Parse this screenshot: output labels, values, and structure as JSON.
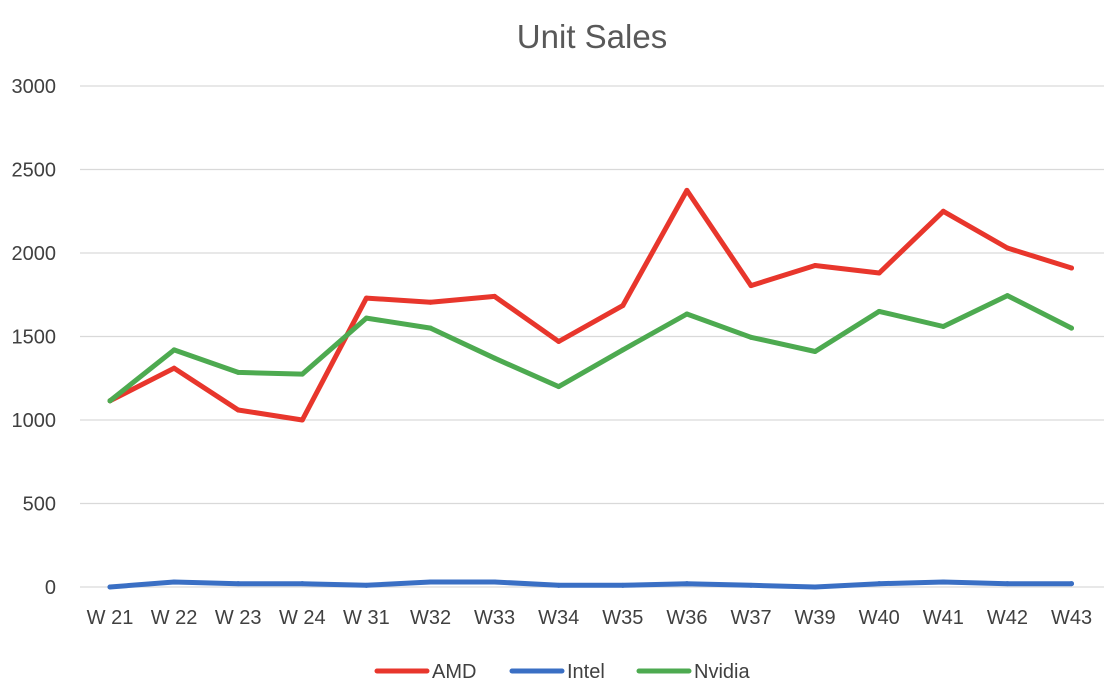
{
  "chart_data": {
    "type": "line",
    "title": "Unit Sales",
    "xlabel": "",
    "ylabel": "",
    "categories": [
      "W 21",
      "W 22",
      "W 23",
      "W 24",
      "W 31",
      "W32",
      "W33",
      "W34",
      "W35",
      "W36",
      "W37",
      "W39",
      "W40",
      "W41",
      "W42",
      "W43"
    ],
    "ylim": [
      0,
      3000
    ],
    "yticks": [
      0,
      500,
      1000,
      1500,
      2000,
      2500,
      3000
    ],
    "grid": true,
    "legend_position": "bottom",
    "series": [
      {
        "name": "AMD",
        "color": "#e8362c",
        "values": [
          1115,
          1310,
          1060,
          1000,
          1730,
          1705,
          1740,
          1470,
          1685,
          2375,
          1805,
          1925,
          1880,
          2250,
          2030,
          1910
        ]
      },
      {
        "name": "Intel",
        "color": "#3a6fc4",
        "values": [
          0,
          30,
          20,
          20,
          10,
          30,
          30,
          10,
          10,
          20,
          10,
          0,
          20,
          30,
          20,
          20
        ]
      },
      {
        "name": "Nvidia",
        "color": "#4daa50",
        "values": [
          1115,
          1420,
          1285,
          1275,
          1610,
          1550,
          1370,
          1200,
          1420,
          1635,
          1495,
          1410,
          1650,
          1560,
          1745,
          1550
        ]
      }
    ]
  }
}
